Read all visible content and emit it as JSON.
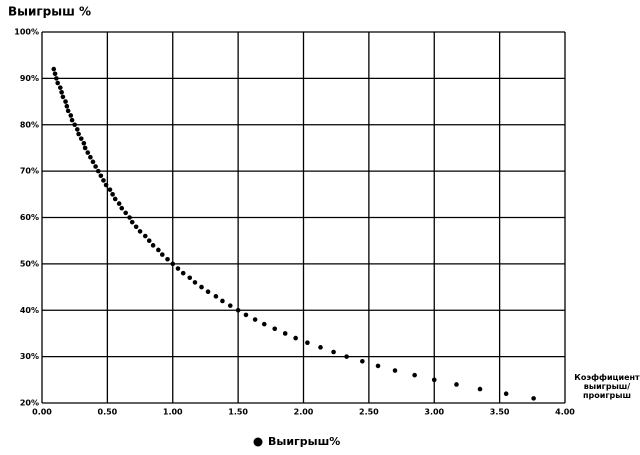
{
  "chart_data": {
    "type": "scatter",
    "title": "Выигрыш %",
    "x_label": "Коэффициент выигрыш/ проигрыш",
    "series": [
      {
        "name": "Выигрыш%",
        "color": "#000000",
        "x": [
          0.09,
          0.1,
          0.11,
          0.12,
          0.14,
          0.15,
          0.16,
          0.18,
          0.19,
          0.2,
          0.22,
          0.23,
          0.25,
          0.27,
          0.28,
          0.3,
          0.32,
          0.33,
          0.35,
          0.37,
          0.39,
          0.41,
          0.43,
          0.45,
          0.47,
          0.49,
          0.52,
          0.54,
          0.56,
          0.59,
          0.61,
          0.64,
          0.67,
          0.69,
          0.72,
          0.75,
          0.79,
          0.82,
          0.85,
          0.89,
          0.92,
          0.96,
          1.0,
          1.04,
          1.08,
          1.13,
          1.17,
          1.22,
          1.27,
          1.33,
          1.38,
          1.44,
          1.5,
          1.56,
          1.63,
          1.7,
          1.78,
          1.86,
          1.94,
          2.03,
          2.13,
          2.23,
          2.33,
          2.45,
          2.57,
          2.7,
          2.85,
          3.0,
          3.17,
          3.35,
          3.55,
          3.76
        ],
        "values": [
          92,
          91,
          90,
          89,
          88,
          87,
          86,
          85,
          84,
          83,
          82,
          81,
          80,
          79,
          78,
          77,
          76,
          75,
          74,
          73,
          72,
          71,
          70,
          69,
          68,
          67,
          66,
          65,
          64,
          63,
          62,
          61,
          60,
          59,
          58,
          57,
          56,
          55,
          54,
          53,
          52,
          51,
          50,
          49,
          48,
          47,
          46,
          45,
          44,
          43,
          42,
          41,
          40,
          39,
          38,
          37,
          36,
          35,
          34,
          33,
          32,
          31,
          30,
          29,
          28,
          27,
          26,
          25,
          24,
          23,
          22,
          21
        ]
      }
    ],
    "xlim": [
      0,
      4
    ],
    "ylim": [
      20,
      100
    ],
    "xticks": [
      {
        "value": 0,
        "label": "0.00"
      },
      {
        "value": 0.5,
        "label": "0.50"
      },
      {
        "value": 1,
        "label": "1.00"
      },
      {
        "value": 1.5,
        "label": "1.50"
      },
      {
        "value": 2,
        "label": "2.00"
      },
      {
        "value": 2.5,
        "label": "2.50"
      },
      {
        "value": 3,
        "label": "3.00"
      },
      {
        "value": 3.5,
        "label": "3.50"
      },
      {
        "value": 4,
        "label": "4.00"
      }
    ],
    "yticks": [
      {
        "value": 20,
        "label": "20%"
      },
      {
        "value": 30,
        "label": "30%"
      },
      {
        "value": 40,
        "label": "40%"
      },
      {
        "value": 50,
        "label": "50%"
      },
      {
        "value": 60,
        "label": "60%"
      },
      {
        "value": 70,
        "label": "70%"
      },
      {
        "value": 80,
        "label": "80%"
      },
      {
        "value": 90,
        "label": "90%"
      },
      {
        "value": 100,
        "label": "100%"
      }
    ],
    "grid": true,
    "legend": "bottom"
  }
}
